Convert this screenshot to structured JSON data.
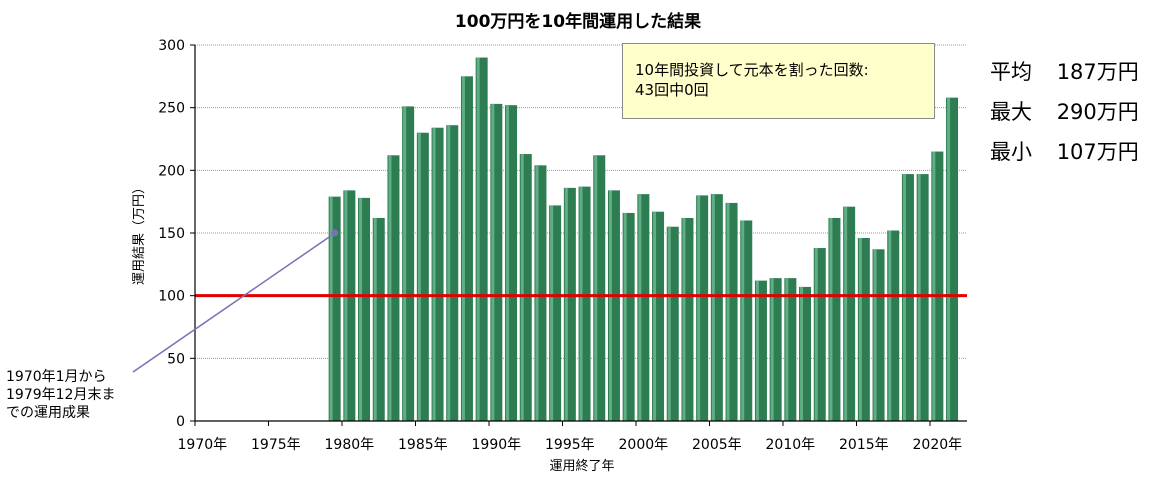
{
  "chart_data": {
    "type": "bar",
    "title": "100万円を10年間運用した結果",
    "xlabel": "運用終了年",
    "ylabel": "運用結果（万円）",
    "ylim": [
      0,
      300
    ],
    "yticks": [
      "0",
      "50",
      "100",
      "150",
      "200",
      "250",
      "300"
    ],
    "xticks": [
      "1970年",
      "1975年",
      "1980年",
      "1985年",
      "1990年",
      "1995年",
      "2000年",
      "2005年",
      "2010年",
      "2015年",
      "2020年"
    ],
    "xtick_years": [
      1970,
      1975,
      1980,
      1985,
      1990,
      1995,
      2000,
      2005,
      2010,
      2015,
      2020
    ],
    "grid": true,
    "bar_color": "#2e7d52",
    "reference_line": {
      "value": 100,
      "color": "#e00000"
    },
    "years": [
      1979,
      1980,
      1981,
      1982,
      1983,
      1984,
      1985,
      1986,
      1987,
      1988,
      1989,
      1990,
      1991,
      1992,
      1993,
      1994,
      1995,
      1996,
      1997,
      1998,
      1999,
      2000,
      2001,
      2002,
      2003,
      2004,
      2005,
      2006,
      2007,
      2008,
      2009,
      2010,
      2011,
      2012,
      2013,
      2014,
      2015,
      2016,
      2017,
      2018,
      2019,
      2020,
      2021
    ],
    "values": [
      179,
      184,
      178,
      162,
      212,
      251,
      230,
      234,
      236,
      275,
      290,
      253,
      252,
      213,
      204,
      172,
      186,
      187,
      212,
      184,
      166,
      181,
      167,
      155,
      162,
      180,
      181,
      174,
      160,
      112,
      114,
      114,
      107,
      138,
      162,
      171,
      146,
      137,
      152,
      197,
      197,
      215,
      258
    ]
  },
  "note": {
    "line1": "10年間投資して元本を割った回数:",
    "line2": "43回中0回"
  },
  "stats": [
    {
      "label": "平均",
      "value": "187万円"
    },
    {
      "label": "最大",
      "value": "290万円"
    },
    {
      "label": "最小",
      "value": "107万円"
    }
  ],
  "callout": {
    "line1": "1970年1月から",
    "line2": "1979年12月末ま",
    "line3": "での運用成果",
    "arrow_color": "#7b6fb5"
  }
}
